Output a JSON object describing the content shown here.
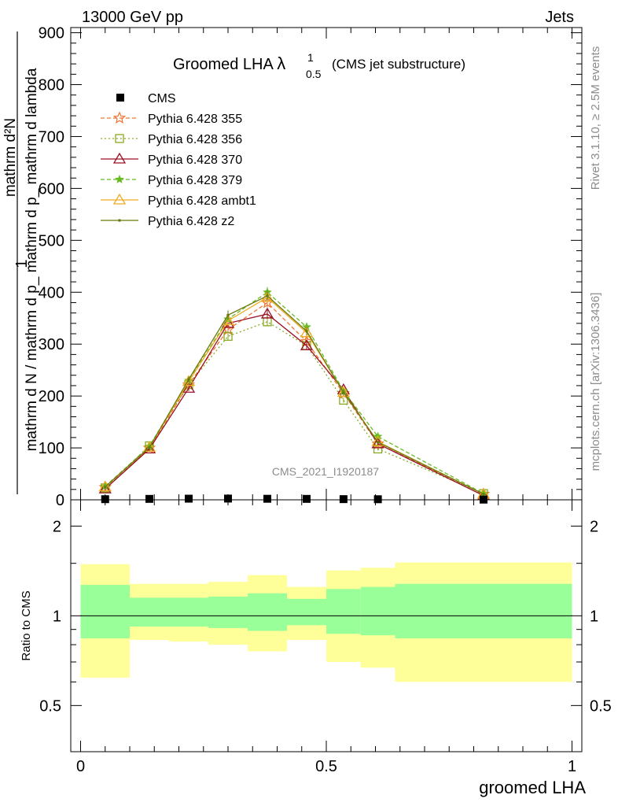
{
  "header": {
    "left": "13000 GeV pp",
    "right": "Jets"
  },
  "chart_data": [
    {
      "type": "line",
      "title_main": "Groomed LHA",
      "title_symbol": "λ",
      "title_sup": "1",
      "title_sub": "0.5",
      "title_note": "(CMS jet substructure)",
      "ylabel_num": "1",
      "ylabel_den": "mathrm d N / mathrm d p_ mathrm d p_ mathrm d lambda",
      "ylabel_top": "mathrm d²N",
      "ylim": [
        0,
        910
      ],
      "xlim": [
        -0.02,
        1.02
      ],
      "yticks": [
        "0",
        "100",
        "200",
        "300",
        "400",
        "500",
        "600",
        "700",
        "800",
        "900"
      ],
      "ytick_values": [
        0,
        100,
        200,
        300,
        400,
        500,
        600,
        700,
        800,
        900
      ],
      "bins": [
        [
          0.0,
          0.1
        ],
        [
          0.1,
          0.18
        ],
        [
          0.18,
          0.26
        ],
        [
          0.26,
          0.34
        ],
        [
          0.34,
          0.42
        ],
        [
          0.42,
          0.5
        ],
        [
          0.5,
          0.57
        ],
        [
          0.57,
          0.64
        ],
        [
          0.64,
          1.0
        ]
      ],
      "x": [
        0.05,
        0.14,
        0.22,
        0.3,
        0.38,
        0.46,
        0.535,
        0.605,
        0.82
      ],
      "data": {
        "name": "CMS",
        "values": [
          1.2,
          1.8,
          2.2,
          2.4,
          2.0,
          1.8,
          1.3,
          1.1,
          0.4
        ]
      },
      "series": [
        {
          "name": "Pythia 6.428 355",
          "color": "#ee7733",
          "dash": "5,3",
          "marker": "star",
          "values": [
            24,
            100,
            222,
            328,
            380,
            305,
            205,
            108,
            11
          ]
        },
        {
          "name": "Pythia 6.428 356",
          "color": "#88aa22",
          "dash": "2,3",
          "marker": "square",
          "values": [
            23,
            104,
            222,
            315,
            343,
            297,
            192,
            98,
            12
          ]
        },
        {
          "name": "Pythia 6.428 370",
          "color": "#991122",
          "dash": "",
          "marker": "triangle",
          "values": [
            21,
            98,
            215,
            340,
            358,
            297,
            212,
            108,
            8
          ]
        },
        {
          "name": "Pythia 6.428 379",
          "color": "#66bb22",
          "dash": "5,3",
          "marker": "star-small",
          "values": [
            26,
            103,
            230,
            348,
            400,
            333,
            210,
            122,
            12
          ]
        },
        {
          "name": "Pythia 6.428 ambt1",
          "color": "#eeaa22",
          "dash": "",
          "marker": "triangle",
          "values": [
            25,
            101,
            228,
            345,
            390,
            322,
            207,
            112,
            11
          ]
        },
        {
          "name": "Pythia 6.428 z2",
          "color": "#6b7a10",
          "dash": "",
          "marker": "dot",
          "values": [
            25,
            101,
            232,
            356,
            393,
            325,
            207,
            111,
            11
          ]
        }
      ],
      "watermark": "CMS_2021_I1920187"
    },
    {
      "type": "area",
      "ylabel": "Ratio to CMS",
      "ylim": [
        0.35,
        2.45
      ],
      "yticks": [
        "0.5",
        "1",
        "2"
      ],
      "ytick_values": [
        0.5,
        1,
        2
      ],
      "xticks": [
        "0",
        "0.5",
        "1"
      ],
      "xtick_values": [
        0,
        0.5,
        1
      ],
      "xlabel": "groomed LHA",
      "yellow_band": {
        "lo": [
          0.62,
          0.83,
          0.82,
          0.8,
          0.76,
          0.83,
          0.7,
          0.67,
          0.6
        ],
        "hi": [
          1.49,
          1.28,
          1.28,
          1.3,
          1.37,
          1.25,
          1.42,
          1.45,
          1.51
        ]
      },
      "green_band": {
        "lo": [
          0.84,
          0.92,
          0.92,
          0.91,
          0.89,
          0.93,
          0.87,
          0.86,
          0.84
        ],
        "hi": [
          1.27,
          1.15,
          1.15,
          1.16,
          1.19,
          1.14,
          1.23,
          1.25,
          1.28
        ]
      },
      "reference": 1
    }
  ],
  "side_labels": {
    "rivet": "Rivet 3.1.10, ≥ 2.5M events",
    "mcplots": "mcplots.cern.ch [arXiv:1306.3436]"
  },
  "colors": {
    "yellow_band": "#ffff99",
    "green_band": "#99ff99"
  }
}
